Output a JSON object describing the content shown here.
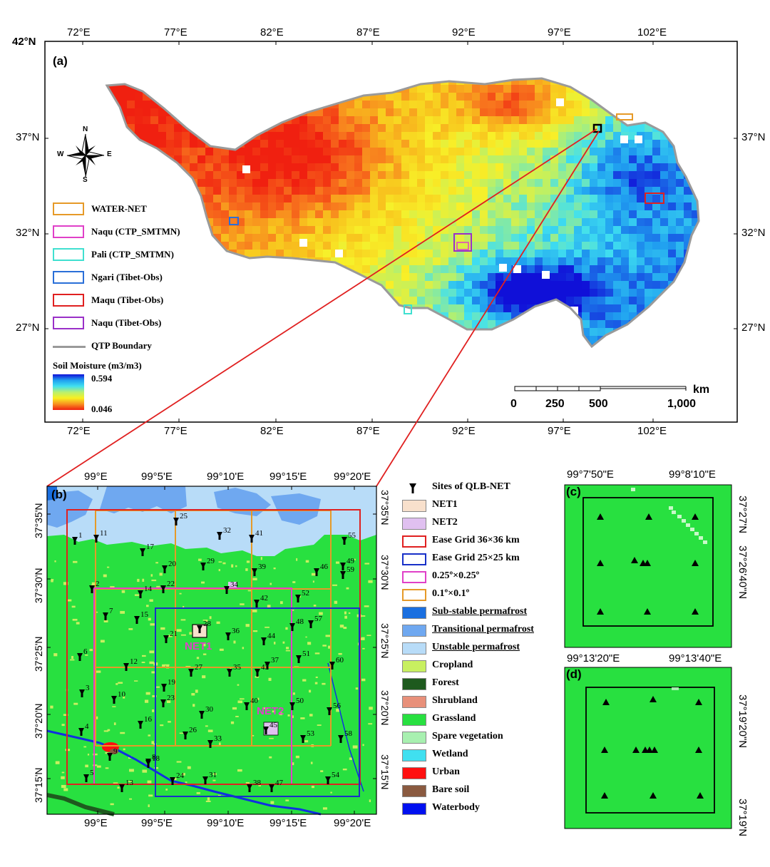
{
  "panel_a": {
    "label": "(a)",
    "top_lon_labels": [
      "72°E",
      "77°E",
      "82°E",
      "87°E",
      "92°E",
      "97°E",
      "102°E"
    ],
    "bottom_lon_labels": [
      "72°E",
      "77°E",
      "82°E",
      "87°E",
      "92°E",
      "97°E",
      "102°E"
    ],
    "left_lat_labels": [
      "42°N",
      "37°N",
      "32°N",
      "27°N"
    ],
    "right_lat_labels": [
      "37°N",
      "32°N",
      "27°N"
    ],
    "compass": {
      "n": "N",
      "s": "S",
      "e": "E",
      "w": "W"
    },
    "legend": [
      {
        "label": "WATER-NET",
        "color": "#e69a28"
      },
      {
        "label": "Naqu (CTP_SMTMN)",
        "color": "#e040c8"
      },
      {
        "label": "Pali (CTP_SMTMN)",
        "color": "#40e0d0"
      },
      {
        "label": "Ngari (Tibet-Obs)",
        "color": "#2a6fd8"
      },
      {
        "label": "Maqu (Tibet-Obs)",
        "color": "#e02020"
      },
      {
        "label": "Naqu (Tibet-Obs)",
        "color": "#9a30c8"
      },
      {
        "label": "QTP Boundary",
        "color": "#999999"
      }
    ],
    "colorbar": {
      "title": "Soil Moisture (m3/m3)",
      "max": "0.594",
      "min": "0.046"
    },
    "scale_bar": {
      "unit": "km",
      "ticks": [
        "0",
        "250",
        "500",
        "1,000"
      ]
    }
  },
  "panel_b": {
    "label": "(b)",
    "top_lon_labels": [
      "99°E",
      "99°5'E",
      "99°10'E",
      "99°15'E",
      "99°20'E"
    ],
    "bottom_lon_labels": [
      "99°E",
      "99°5'E",
      "99°10'E",
      "99°15'E",
      "99°20'E"
    ],
    "left_lat_labels": [
      "37°35'N",
      "37°30'N",
      "37°25'N",
      "37°20'N",
      "37°15'N"
    ],
    "right_lat_labels": [
      "37°35'N",
      "37°30'N",
      "37°25'N",
      "37°20'N",
      "37°15'N"
    ],
    "net1_label": "NET1",
    "net2_label": "NET2",
    "sites": [
      "1",
      "2",
      "3",
      "4",
      "5",
      "6",
      "7",
      "8",
      "9",
      "10",
      "11",
      "12",
      "13",
      "14",
      "15",
      "16",
      "17",
      "18",
      "19",
      "20",
      "21",
      "22",
      "23",
      "24",
      "25",
      "26",
      "27",
      "28",
      "29",
      "30",
      "31",
      "32",
      "33",
      "34",
      "35",
      "36",
      "37",
      "38",
      "39",
      "40",
      "41",
      "42",
      "43",
      "44",
      "45",
      "46",
      "47",
      "48",
      "49",
      "50",
      "51",
      "52",
      "53",
      "54",
      "55",
      "56",
      "57",
      "58",
      "59",
      "60"
    ]
  },
  "legend_b": [
    {
      "label": "Sites of QLB-NET",
      "kind": "site"
    },
    {
      "label": "NET1",
      "kind": "fill",
      "color": "#f8e0cc"
    },
    {
      "label": "NET2",
      "kind": "fill",
      "color": "#e0c0f0"
    },
    {
      "label": "Ease Grid 36×36 km",
      "kind": "box",
      "color": "#e02020"
    },
    {
      "label": "Ease Grid 25×25 km",
      "kind": "box",
      "color": "#1830c8"
    },
    {
      "label": "0.25º×0.25º",
      "kind": "box",
      "color": "#e040c8"
    },
    {
      "label": "0.1º×0.1º",
      "kind": "box",
      "color": "#e69a28"
    },
    {
      "label": "Sub-stable permafrost",
      "kind": "fill",
      "color": "#1a6fe0",
      "underline": true
    },
    {
      "label": "Transitional permafrost",
      "kind": "fill",
      "color": "#6fa8f0",
      "underline": true
    },
    {
      "label": "Unstable permafrost",
      "kind": "fill",
      "color": "#b8dcf8",
      "underline": true
    },
    {
      "label": "Cropland",
      "kind": "fill",
      "color": "#c8f060"
    },
    {
      "label": "Forest",
      "kind": "fill",
      "color": "#1e5a1e"
    },
    {
      "label": "Shrubland",
      "kind": "fill",
      "color": "#e8907a"
    },
    {
      "label": "Grassland",
      "kind": "fill",
      "color": "#28e040"
    },
    {
      "label": "Spare vegetation",
      "kind": "fill",
      "color": "#a8f0b0"
    },
    {
      "label": "Wetland",
      "kind": "fill",
      "color": "#40e0f0"
    },
    {
      "label": "Urban",
      "kind": "fill",
      "color": "#ff1010"
    },
    {
      "label": "Bare soil",
      "kind": "fill",
      "color": "#8a5a40"
    },
    {
      "label": "Waterbody",
      "kind": "fill",
      "color": "#0010f0"
    }
  ],
  "panel_c": {
    "label": "(c)",
    "top_lon_labels": [
      "99°7'50\"E",
      "99°8'10\"E"
    ],
    "right_lat_labels": [
      "37°27'N",
      "37°26'40\"N"
    ]
  },
  "panel_d": {
    "label": "(d)",
    "top_lon_labels": [
      "99°13'20\"E",
      "99°13'40\"E"
    ],
    "right_lat_labels": [
      "37°19'20\"N",
      "37°19'N"
    ]
  },
  "colors": {
    "grass": "#28e040",
    "map_frame": "#000000",
    "zoom_line": "#e02020"
  }
}
